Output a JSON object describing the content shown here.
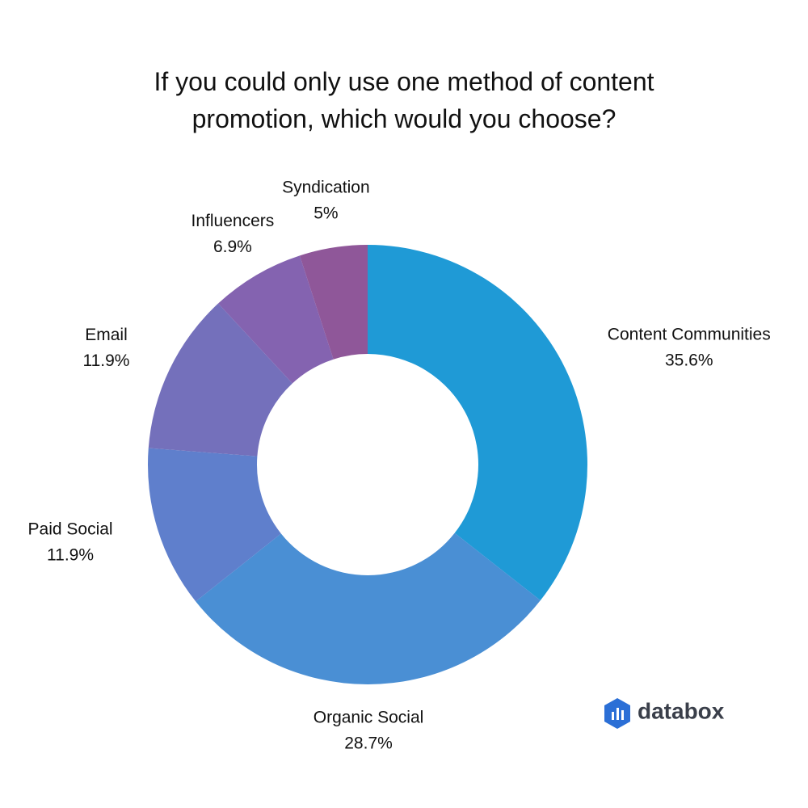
{
  "chart_data": {
    "type": "donut",
    "title": "If you could only use one method of content promotion, which would you choose?",
    "categories": [
      "Content Communities",
      "Organic Social",
      "Paid Social",
      "Email",
      "Influencers",
      "Syndication"
    ],
    "values": [
      35.6,
      28.7,
      11.9,
      11.9,
      6.9,
      5
    ],
    "value_labels": [
      "35.6%",
      "28.7%",
      "11.9%",
      "11.9%",
      "6.9%",
      "5%"
    ],
    "colors": [
      "#1f9ad6",
      "#4a8fd4",
      "#5f7fcc",
      "#7470bb",
      "#8463b0",
      "#8f5799"
    ],
    "brand": "databox"
  }
}
